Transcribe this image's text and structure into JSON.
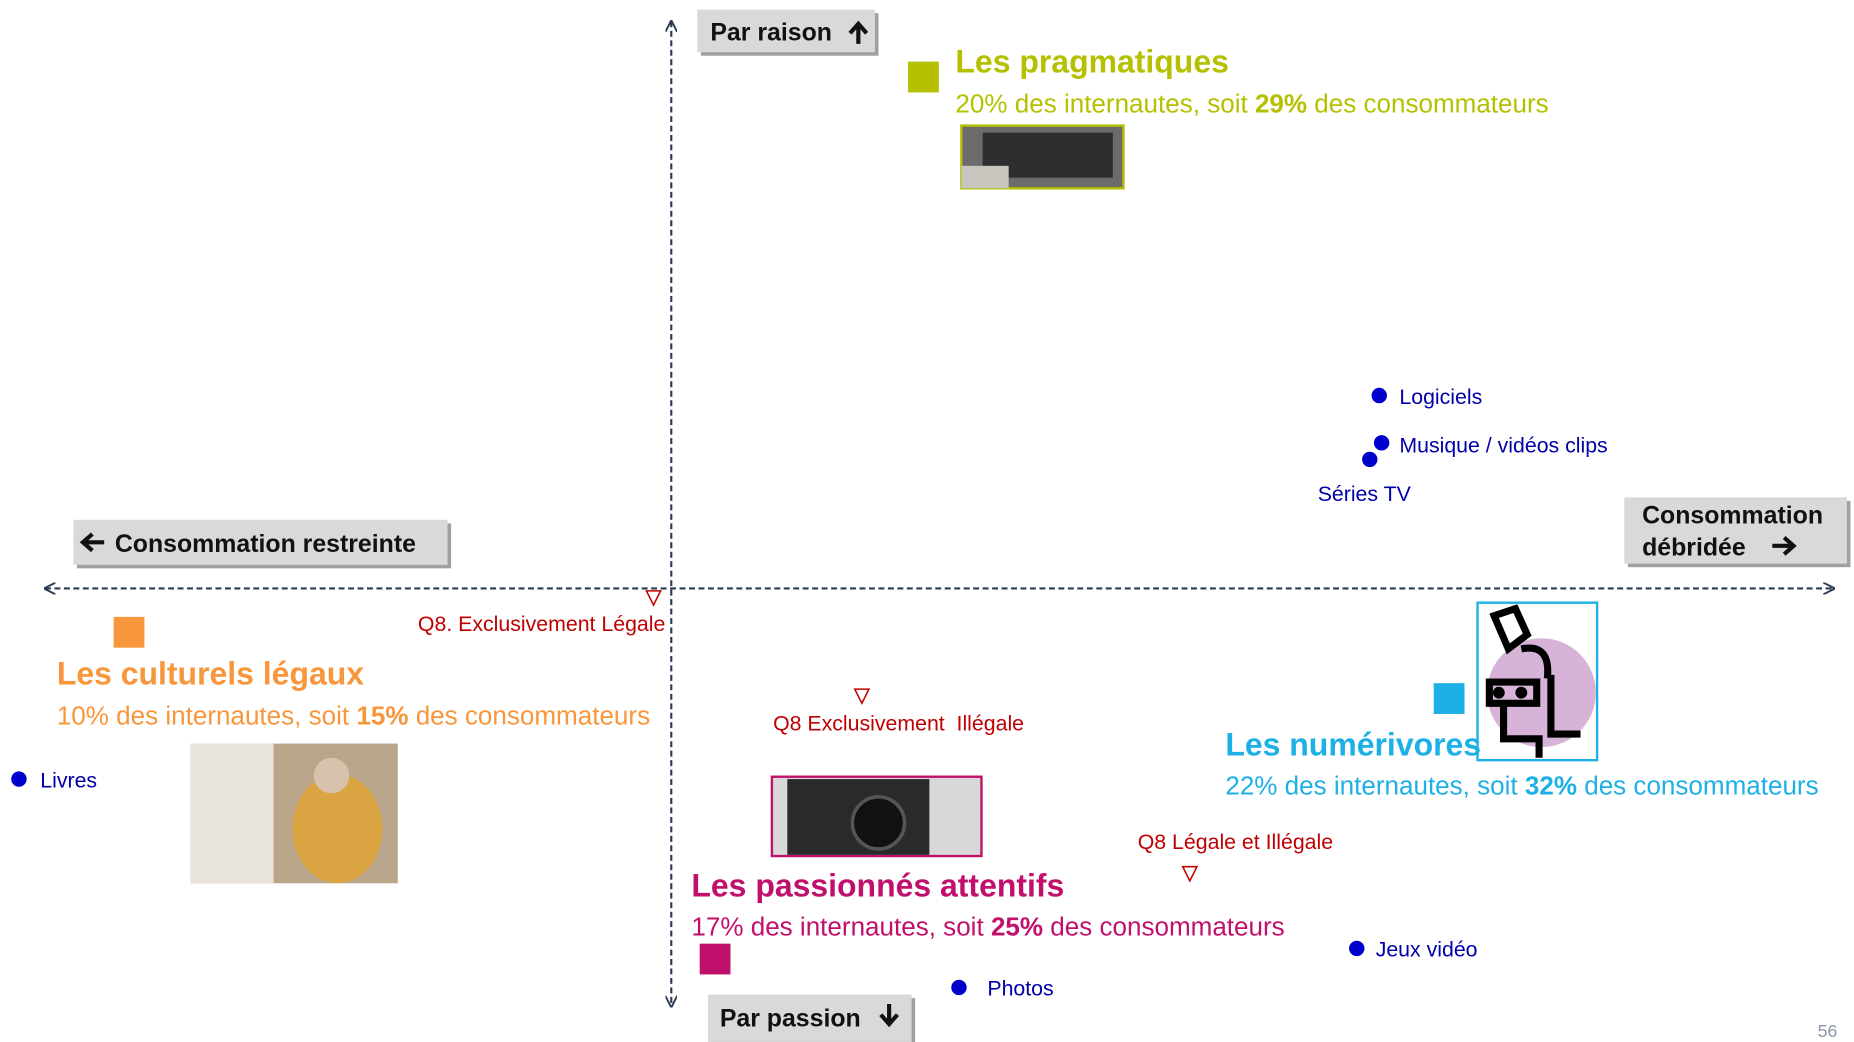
{
  "axes": {
    "top": "Par raison",
    "bottom": "Par passion",
    "left": "Consommation restreinte",
    "right": [
      "Consommation",
      "débridée"
    ]
  },
  "segments": [
    {
      "name": "Les pragmatiques",
      "share": "20% des internautes, soit ",
      "highlight": "29%",
      "rest": " des consommateurs"
    },
    {
      "name": "Les culturels légaux",
      "share": "10% des internautes, soit ",
      "highlight": "15%",
      "rest": " des consommateurs"
    },
    {
      "name": "Les numérivores",
      "share": "22% des internautes, soit ",
      "highlight": "32%",
      "rest": " des consommateurs"
    },
    {
      "name": "Les passionnés attentifs",
      "share": "17% des internautes, soit ",
      "highlight": "25%",
      "rest": " des consommateurs"
    }
  ],
  "points": [
    "Logiciels",
    "Musique / vidéos clips",
    "Séries TV",
    "Livres",
    "Jeux vidéo",
    "Photos"
  ],
  "markers": [
    "Q8. Exclusivement Légale",
    "Q8 Exclusivement  Illégale",
    "Q8 Légale et Illégale"
  ],
  "page_number": "56"
}
